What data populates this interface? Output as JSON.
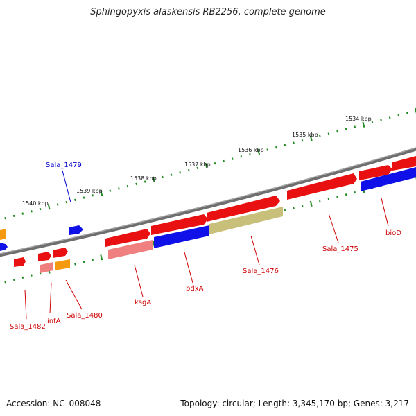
{
  "title": "Sphingopyxis alaskensis RB2256, complete genome",
  "accession": "Accession: NC_008048",
  "topology": "Topology: circular",
  "length": "Length: 3,345,170 bp",
  "genes": "Genes: 3,217",
  "colors": {
    "backbone": "#808080",
    "cds_forward": "#e81010",
    "cds_reverse": "#1010e8",
    "cds_alt": "#f59a10",
    "cds_pale": "#f08080",
    "cds_olive": "#c8c07a",
    "tick": "#1f8a1f",
    "label_red": "#cc0000",
    "label_blue": "#0000cc"
  },
  "kbp_ticks": [
    "1534 kbp",
    "1535 kbp",
    "1536 kbp",
    "1537 kbp",
    "1538 kbp",
    "1539 kbp",
    "1540 kbp"
  ],
  "gene_labels": [
    {
      "name": "Sala_1479",
      "color": "blue"
    },
    {
      "name": "Sala_1482",
      "color": "red"
    },
    {
      "name": "infA",
      "color": "red"
    },
    {
      "name": "Sala_1480",
      "color": "red"
    },
    {
      "name": "ksgA",
      "color": "red"
    },
    {
      "name": "pdxA",
      "color": "red"
    },
    {
      "name": "Sala_1476",
      "color": "red"
    },
    {
      "name": "Sala_1475",
      "color": "red"
    },
    {
      "name": "bioD",
      "color": "red"
    }
  ]
}
